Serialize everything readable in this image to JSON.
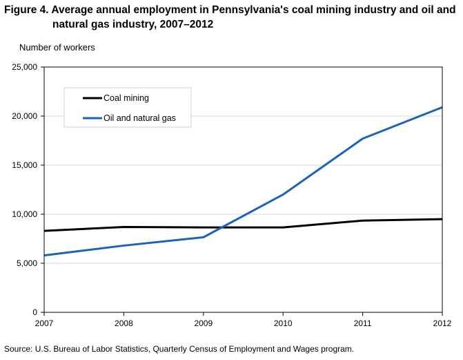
{
  "chart_data": {
    "type": "line",
    "title_line1": "Figure 4. Average annual employment in Pennsylvania's  coal mining industry and oil and",
    "title_line2": "natural gas industry, 2007–2012",
    "ylabel": "Number of workers",
    "xlabel": "",
    "x": [
      "2007",
      "2008",
      "2009",
      "2010",
      "2011",
      "2012"
    ],
    "ylim": [
      0,
      25000
    ],
    "yticks": [
      0,
      5000,
      10000,
      15000,
      20000,
      25000
    ],
    "ytick_labels": [
      "0",
      "5,000",
      "10,000",
      "15,000",
      "20,000",
      "25,000"
    ],
    "grid": true,
    "legend_position": "top-left",
    "series": [
      {
        "name": "Coal mining",
        "color": "#000000",
        "values": [
          8300,
          8700,
          8650,
          8650,
          9350,
          9500
        ]
      },
      {
        "name": "Oil and natural gas",
        "color": "#1a63b8",
        "values": [
          5800,
          6800,
          7650,
          12000,
          17700,
          20900
        ]
      }
    ]
  },
  "source": "Source:  U.S. Bureau of Labor Statistics,  Quarterly Census of Employment  and Wages program."
}
